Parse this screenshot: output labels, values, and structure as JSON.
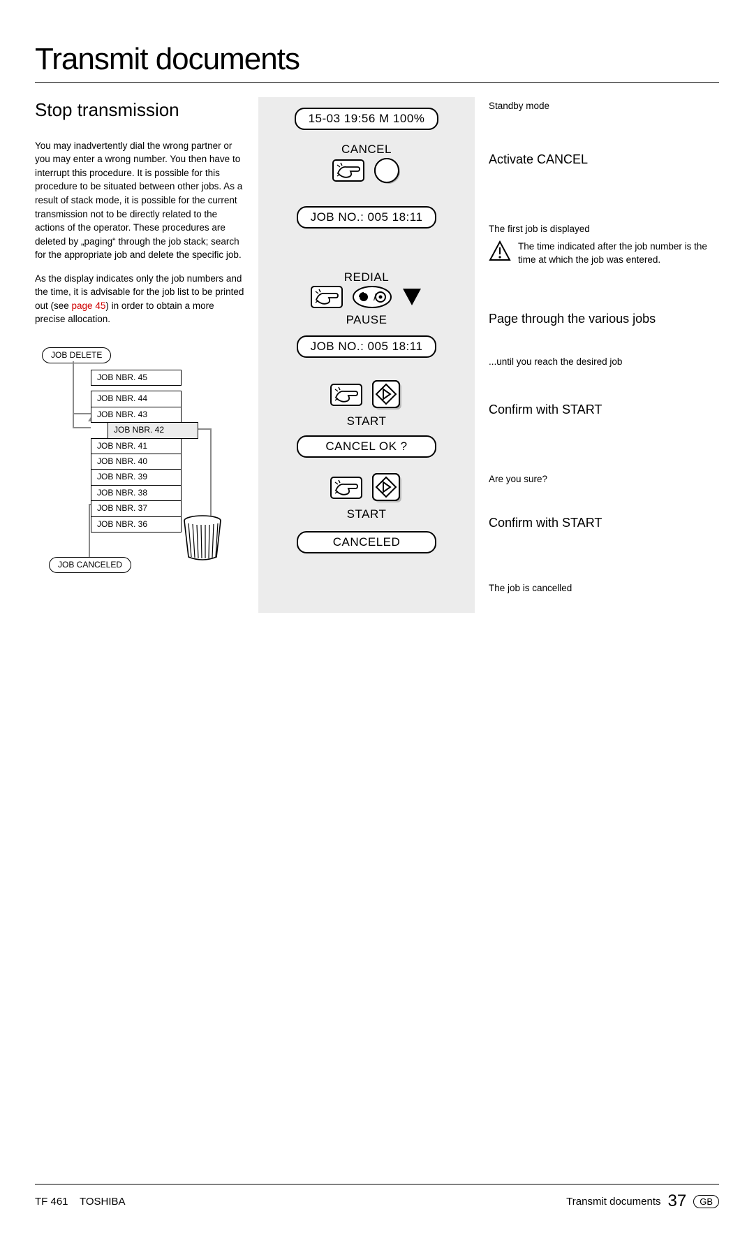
{
  "title": "Transmit documents",
  "subtitle": "Stop transmission",
  "body1": "You may inadvertently dial the wrong partner or you may enter a wrong number. You then have to interrupt this procedure. It is possible for this procedure to be situated between other jobs. As a result of stack mode, it is possible for the current transmission not to be directly related to the actions of the operator. These procedures are deleted by „paging“ through the job stack; search for the appropriate job and delete the specific job.",
  "body2a": "As the display indicates only the job numbers and the time, it is advisable for the job list to be printed out (see ",
  "body2ref": "page 45",
  "body2b": ") in order to obtain a more precise allocation.",
  "stack": {
    "delete_label": "JOB DELETE",
    "rows": [
      "JOB NBR. 45",
      "JOB NBR. 44",
      "JOB NBR. 43",
      "JOB NBR. 42",
      "JOB NBR. 41",
      "JOB NBR. 40",
      "JOB NBR. 39",
      "JOB NBR. 38",
      "JOB NBR. 37",
      "JOB NBR. 36"
    ],
    "selected_index": 3,
    "cancel_label": "JOB CANCELED"
  },
  "mid": {
    "standby": "15-03 19:56  M 100%",
    "cancel_label": "CANCEL",
    "job1": "JOB NO.:  005    18:11",
    "redial": "REDIAL",
    "pause": "PAUSE",
    "job2": "JOB NO.:  005    18:11",
    "start1": "START",
    "cancel_ok": "CANCEL OK ?",
    "start2": "START",
    "canceled": "CANCELED"
  },
  "right": {
    "standby_note": "Standby mode",
    "activate": "Activate CANCEL",
    "first_job": "The first job is displayed",
    "warn": "The time indicated after the job number is the time at which the job was entered.",
    "page_action": "Page through the various jobs",
    "until": "...until you reach the desired job",
    "confirm1": "Confirm with START",
    "sure": "Are you sure?",
    "confirm2": "Confirm with START",
    "cancelled": "The job is cancelled"
  },
  "footer": {
    "model": "TF 461",
    "brand": "TOSHIBA",
    "section": "Transmit documents",
    "page": "37",
    "lang": "GB"
  },
  "colors": {
    "grey_panel": "#ececec",
    "ref": "#d00000"
  }
}
